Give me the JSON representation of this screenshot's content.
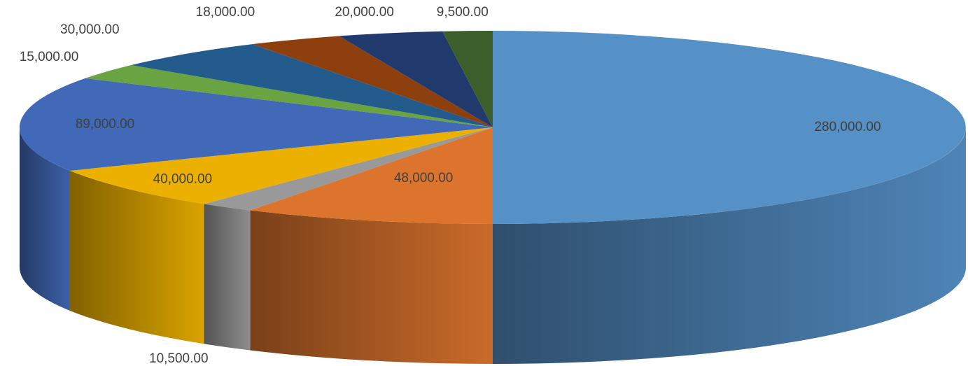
{
  "chart_data": {
    "type": "pie",
    "title": "",
    "three_d": true,
    "legend": "none",
    "slices": [
      {
        "value": 280000,
        "label": "280,000.00",
        "color": "#5590C7"
      },
      {
        "value": 48000,
        "label": "48,000.00",
        "color": "#DC742E"
      },
      {
        "value": 10500,
        "label": "10,500.00",
        "color": "#999999"
      },
      {
        "value": 40000,
        "label": "40,000.00",
        "color": "#ECB100"
      },
      {
        "value": 89000,
        "label": "89,000.00",
        "color": "#4169B8"
      },
      {
        "value": 15000,
        "label": "15,000.00",
        "color": "#6AA342"
      },
      {
        "value": 30000,
        "label": "30,000.00",
        "color": "#235B8C"
      },
      {
        "value": 18000,
        "label": "18,000.00",
        "color": "#8D3F0E"
      },
      {
        "value": 20000,
        "label": "20,000.00",
        "color": "#203A6E"
      },
      {
        "value": 9500,
        "label": "9,500.00",
        "color": "#3C5E2B"
      }
    ]
  }
}
